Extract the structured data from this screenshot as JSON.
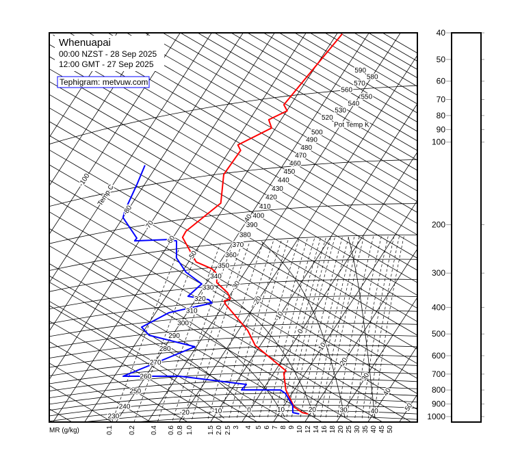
{
  "header": {
    "station": "Whenuapai",
    "local_time": "00:00 NZST - 28 Sep 2025",
    "utc_time": "12:00 GMT - 27 Sep 2025",
    "credit": "Tephigram: metvuw.com"
  },
  "chart_data": {
    "type": "line",
    "diagram": "tephigram",
    "title": "Whenuapai",
    "isotherm_axis_label": "Temp C",
    "isentrope_axis_label": "Pot Temp K",
    "mixing_ratio_axis_label": "MR (g/kg)",
    "isotherm_labels": [
      "-100",
      "-80",
      "-70",
      "-60",
      "-50",
      "-40",
      "-30",
      "-20",
      "-10",
      "0",
      "10",
      "20",
      "30",
      "40",
      "50"
    ],
    "surface_temp_labels": [
      "-20",
      "-10",
      "0",
      "10",
      "20",
      "30",
      "40"
    ],
    "isentrope_labels": [
      "230",
      "240",
      "250",
      "260",
      "270",
      "280",
      "290",
      "300",
      "310",
      "320",
      "330",
      "340",
      "350",
      "360",
      "370",
      "380",
      "390",
      "400",
      "410",
      "420",
      "430",
      "440",
      "450",
      "460",
      "470",
      "480",
      "490",
      "500",
      "520",
      "530",
      "540",
      "550",
      "560",
      "570",
      "580",
      "590"
    ],
    "mixing_ratio_labels": [
      "0.1",
      "0.2",
      "0.4",
      "0.6",
      "0.8",
      "1.0",
      "1.5",
      "2.0",
      "2.5",
      "3",
      "4",
      "5",
      "6",
      "7",
      "8",
      "9",
      "10",
      "12",
      "14",
      "16",
      "18",
      "20",
      "25",
      "30",
      "35",
      "40",
      "45",
      "50"
    ],
    "pressure_axis": {
      "unit": "hPa",
      "ticks": [
        "40",
        "50",
        "60",
        "70",
        "80",
        "90",
        "100",
        "200",
        "300",
        "400",
        "500",
        "600",
        "700",
        "800",
        "900",
        "1000"
      ],
      "scale": "log"
    },
    "isobar_levels_hpa": [
      1050,
      1000,
      950,
      900,
      850,
      800,
      750,
      700,
      650,
      600,
      550,
      500,
      450,
      400,
      350,
      300,
      250,
      200,
      150,
      100,
      50
    ],
    "moist_adiabat_wet_bulb_c": [
      -10,
      0,
      10,
      20,
      30,
      40
    ],
    "point_format": [
      "temperature_c",
      "potential_temperature_k"
    ],
    "series": [
      {
        "variable": "temperature",
        "color": "#ff0000",
        "points": [
          [
            19.2,
            289.9
          ],
          [
            17.2,
            288.9
          ],
          [
            13.5,
            289.3
          ],
          [
            7.3,
            296.2
          ],
          [
            3.1,
            305.3
          ],
          [
            3.4,
            307.2
          ],
          [
            -11.6,
            311.6
          ],
          [
            -17.1,
            318.0
          ],
          [
            -29.5,
            326.1
          ],
          [
            -30.6,
            327.7
          ],
          [
            -29.1,
            331.2
          ],
          [
            -31.2,
            334.1
          ],
          [
            -36.8,
            336.6
          ],
          [
            -38.6,
            342.4
          ],
          [
            -41.2,
            343.7
          ],
          [
            -47.6,
            342.2
          ],
          [
            -57.0,
            353.2
          ],
          [
            -57.2,
            358.7
          ],
          [
            -51.9,
            393.2
          ],
          [
            -56.9,
            416.6
          ],
          [
            -56.5,
            444.3
          ],
          [
            -58.5,
            447.6
          ],
          [
            -51.3,
            479.8
          ],
          [
            -53.9,
            485.9
          ],
          [
            -49.9,
            504.4
          ],
          [
            -52.2,
            508.4
          ],
          [
            -48.3,
            619.9
          ]
        ]
      },
      {
        "variable": "dewpoint",
        "color": "#0000ff",
        "points": [
          [
            16.4,
            287.1
          ],
          [
            14.2,
            285.9
          ],
          [
            12.7,
            289.7
          ],
          [
            7.8,
            294.1
          ],
          [
            5.6,
            294.4
          ],
          [
            -6.8,
            282.0
          ],
          [
            -6.4,
            286.5
          ],
          [
            -29.2,
            270.4
          ],
          [
            -47.2,
            254.0
          ],
          [
            -30.5,
            290.8
          ],
          [
            -47.4,
            282.6
          ],
          [
            -51.5,
            284.6
          ],
          [
            -45.8,
            301.5
          ],
          [
            -34.1,
            322.0
          ],
          [
            -35.9,
            322.9
          ],
          [
            -43.1,
            317.7
          ],
          [
            -41.3,
            330.2
          ],
          [
            -48.7,
            331.8
          ],
          [
            -54.7,
            337.4
          ],
          [
            -58.2,
            348.5
          ],
          [
            -60.9,
            346.5
          ],
          [
            -71.5,
            332.8
          ],
          [
            -71.4,
            335.3
          ],
          [
            -80.0,
            343.4
          ],
          [
            -80.9,
            349.1
          ],
          [
            -82.4,
            371.1
          ],
          [
            -83.8,
            388.4
          ]
        ]
      }
    ]
  },
  "colors": {
    "temperature": "#ff0000",
    "dewpoint": "#0000ff",
    "credit_border": "#0000ff",
    "grid": "#000000"
  }
}
